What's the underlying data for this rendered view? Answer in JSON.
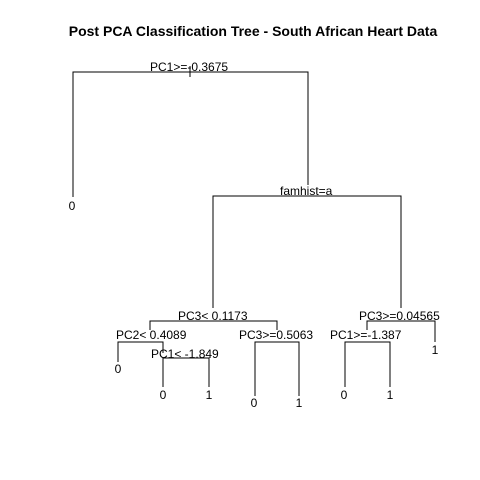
{
  "title": "Post PCA Classification Tree  - South African Heart Data",
  "splits": {
    "root": "PC1>=-0.3675",
    "famhist": "famhist=a",
    "pc3_left": "PC3< 0.1173",
    "pc3_right": "PC3>=0.04565",
    "pc2": "PC2< 0.4089",
    "pc3_mid": "PC3>=0.5063",
    "pc1_low": "PC1< -1.849",
    "pc1_right": "PC1>=-1.387"
  },
  "leaves": {
    "root_left": "0",
    "pc2_left": "0",
    "pc1_low_left": "0",
    "pc1_low_right": "1",
    "pc3_mid_left": "0",
    "pc3_mid_right": "1",
    "pc1_right_left": "0",
    "pc1_right_right": "1",
    "pc3_right_right": "1"
  }
}
